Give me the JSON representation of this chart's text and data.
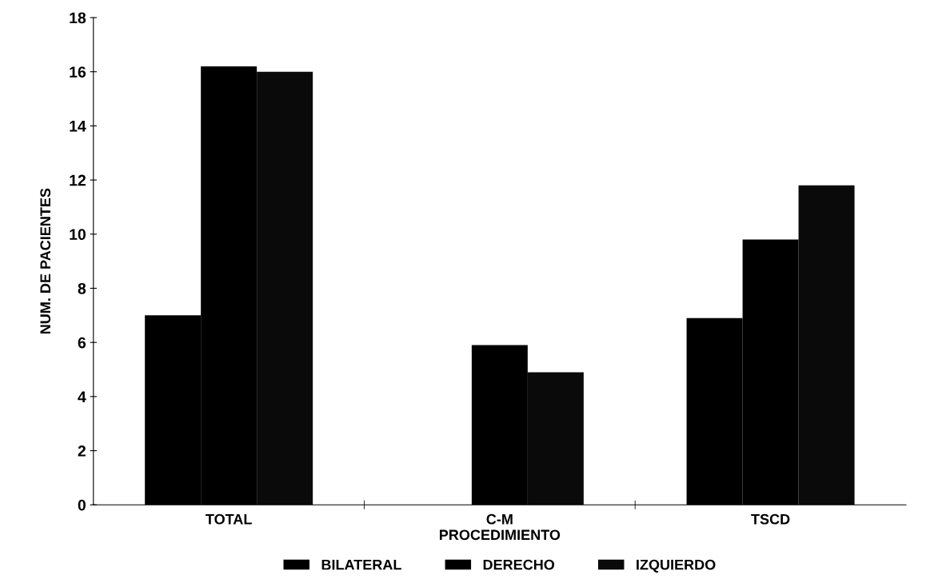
{
  "chart_data": {
    "type": "bar",
    "xlabel": "PROCEDIMIENTO",
    "ylabel": "NUM. DE PACIENTES",
    "categories": [
      "TOTAL",
      "C-M",
      "TSCD"
    ],
    "series": [
      {
        "name": "BILATERAL",
        "color": "#000000",
        "values": [
          7,
          0,
          6.9
        ]
      },
      {
        "name": "DERECHO",
        "color": "#000000",
        "values": [
          16.2,
          5.9,
          9.8
        ]
      },
      {
        "name": "IZQUIERDO",
        "color": "#0a0a0a",
        "values": [
          16,
          4.9,
          11.8
        ]
      }
    ],
    "ylim": [
      0,
      18
    ],
    "yticks": [
      0,
      2,
      4,
      6,
      8,
      10,
      12,
      14,
      16,
      18
    ],
    "grid": false,
    "legend": "bottom"
  }
}
